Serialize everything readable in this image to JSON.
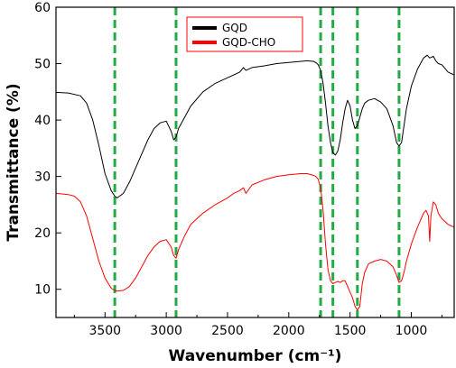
{
  "chart_data": {
    "type": "line",
    "title": "",
    "xlabel": "Wavenumber (cm⁻¹)",
    "ylabel": "Transmittance (%)",
    "xlim": [
      3900,
      650
    ],
    "x_reversed": true,
    "ylim": [
      5,
      60
    ],
    "xticks": [
      3500,
      3000,
      2500,
      2000,
      1500,
      1000
    ],
    "xtick_labels": [
      "3500",
      "3000",
      "2500",
      "2000",
      "1500",
      "1000"
    ],
    "yticks": [
      10,
      20,
      30,
      40,
      50,
      60
    ],
    "ytick_labels": [
      "10",
      "20",
      "30",
      "40",
      "50",
      "60"
    ],
    "grid": false,
    "legend_position": "top-center",
    "series": [
      {
        "name": "GQD",
        "color": "#000000",
        "x": [
          3900,
          3800,
          3700,
          3650,
          3600,
          3550,
          3500,
          3450,
          3420,
          3400,
          3350,
          3300,
          3250,
          3200,
          3150,
          3100,
          3050,
          3000,
          2960,
          2940,
          2920,
          2900,
          2850,
          2800,
          2700,
          2600,
          2500,
          2400,
          2370,
          2350,
          2300,
          2200,
          2100,
          2000,
          1900,
          1850,
          1800,
          1780,
          1760,
          1740,
          1720,
          1700,
          1680,
          1660,
          1640,
          1620,
          1600,
          1580,
          1560,
          1540,
          1520,
          1500,
          1480,
          1460,
          1440,
          1420,
          1400,
          1380,
          1350,
          1300,
          1250,
          1200,
          1150,
          1120,
          1100,
          1080,
          1060,
          1040,
          1000,
          950,
          900,
          870,
          850,
          820,
          800,
          780,
          750,
          700,
          650
        ],
        "y": [
          44.9,
          44.8,
          44.3,
          43,
          40,
          35.5,
          30.5,
          27.5,
          26.5,
          26.2,
          27,
          29,
          31.5,
          34,
          36.5,
          38.5,
          39.5,
          39.8,
          38,
          36.5,
          37,
          38.5,
          40.5,
          42.5,
          45,
          46.5,
          47.5,
          48.5,
          49.3,
          48.8,
          49.3,
          49.6,
          50,
          50.2,
          50.4,
          50.5,
          50.4,
          50.2,
          49.8,
          48.8,
          46.5,
          43,
          39,
          36,
          34.2,
          33.8,
          34.5,
          36.5,
          39.5,
          42,
          43.5,
          42.5,
          40,
          38.5,
          39,
          40.5,
          42,
          43,
          43.5,
          43.8,
          43.2,
          42,
          39,
          36,
          35.4,
          36,
          39,
          42,
          46,
          49,
          51,
          51.5,
          51,
          51.3,
          50.5,
          50,
          49.8,
          48.5,
          48
        ]
      },
      {
        "name": "GQD-CHO",
        "color": "#ff0000",
        "x": [
          3900,
          3850,
          3800,
          3750,
          3700,
          3650,
          3600,
          3550,
          3500,
          3450,
          3420,
          3400,
          3350,
          3300,
          3250,
          3200,
          3150,
          3100,
          3050,
          3000,
          2960,
          2940,
          2920,
          2900,
          2850,
          2800,
          2750,
          2700,
          2600,
          2500,
          2450,
          2400,
          2370,
          2350,
          2300,
          2200,
          2100,
          2000,
          1900,
          1850,
          1800,
          1780,
          1760,
          1740,
          1720,
          1700,
          1680,
          1660,
          1640,
          1620,
          1600,
          1580,
          1560,
          1540,
          1520,
          1500,
          1480,
          1460,
          1440,
          1420,
          1400,
          1380,
          1350,
          1300,
          1250,
          1200,
          1150,
          1120,
          1100,
          1080,
          1060,
          1040,
          1000,
          950,
          900,
          880,
          860,
          850,
          840,
          820,
          800,
          780,
          750,
          700,
          650
        ],
        "y": [
          27,
          26.9,
          26.8,
          26.5,
          25.5,
          23,
          19,
          15,
          12,
          10.2,
          9.8,
          9.7,
          9.8,
          10.5,
          12,
          14,
          16,
          17.5,
          18.5,
          18.8,
          17.5,
          16,
          15.5,
          17,
          19.5,
          21.5,
          22.5,
          23.5,
          25,
          26.2,
          27,
          27.5,
          28,
          27,
          28.5,
          29.4,
          30,
          30.3,
          30.5,
          30.5,
          30.2,
          30,
          29.5,
          28,
          24,
          18,
          13.5,
          11.5,
          11,
          11.2,
          11.4,
          11.2,
          11.5,
          11.5,
          10.5,
          9.5,
          8.5,
          7,
          6.3,
          7,
          11,
          13,
          14.5,
          15,
          15.3,
          15,
          14,
          12.5,
          11.2,
          11.5,
          13,
          15,
          18,
          21,
          23.5,
          24,
          23,
          18.5,
          23,
          25.5,
          25,
          23.5,
          22.5,
          21.5,
          21
        ]
      }
    ],
    "reference_lines": [
      3420,
      2920,
      1740,
      1640,
      1440,
      1100
    ],
    "reference_line_color": "#22aa44"
  }
}
